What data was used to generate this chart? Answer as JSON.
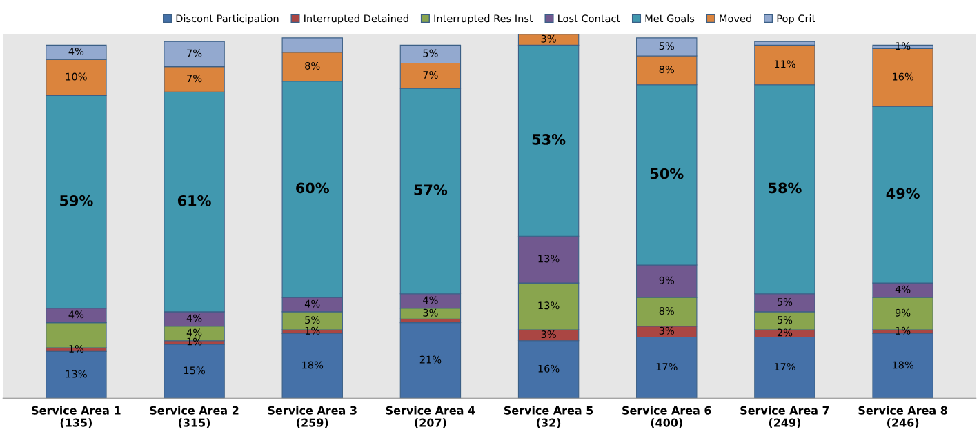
{
  "chart_data": {
    "type": "bar",
    "stacked": true,
    "data_labels": true,
    "legend": "top",
    "grid": false,
    "categories": [
      "Service Area 1\n(135)",
      "Service Area 2\n(315)",
      "Service Area 3\n(259)",
      "Service Area 4\n(207)",
      "Service Area 5\n(32)",
      "Service Area 6\n(400)",
      "Service Area 7\n(249)",
      "Service Area 8\n(246)"
    ],
    "series": [
      {
        "name": "Discont Participation",
        "color": "#4571a8",
        "values": [
          13,
          15,
          18,
          21,
          16,
          17,
          17,
          18
        ],
        "value_labels": [
          "13%",
          "15%",
          "18%",
          "21%",
          "16%",
          "17%",
          "17%",
          "18%"
        ]
      },
      {
        "name": "Interrupted Detained",
        "color": "#aa4643",
        "values": [
          1,
          1,
          1,
          1,
          3,
          3,
          2,
          1
        ],
        "value_labels": [
          "1%",
          "1%",
          "1%",
          null,
          "3%",
          "3%",
          "2%",
          "1%"
        ]
      },
      {
        "name": "Interrupted Res Inst",
        "color": "#89a54e",
        "values": [
          7,
          4,
          5,
          3,
          13,
          8,
          5,
          9
        ],
        "value_labels": [
          null,
          "4%",
          "5%",
          "3%",
          "13%",
          "8%",
          "5%",
          "9%"
        ]
      },
      {
        "name": "Lost Contact",
        "color": "#71588f",
        "values": [
          4,
          4,
          4,
          4,
          13,
          9,
          5,
          4
        ],
        "value_labels": [
          "4%",
          "4%",
          "4%",
          "4%",
          "13%",
          "9%",
          "5%",
          "4%"
        ]
      },
      {
        "name": "Met Goals",
        "color": "#4198af",
        "values": [
          59,
          61,
          60,
          57,
          53,
          50,
          58,
          49
        ],
        "value_labels": [
          "59%",
          "61%",
          "60%",
          "57%",
          "53%",
          "50%",
          "58%",
          "49%"
        ]
      },
      {
        "name": "Moved",
        "color": "#db843d",
        "values": [
          10,
          7,
          8,
          7,
          3,
          8,
          11,
          16
        ],
        "value_labels": [
          "10%",
          "7%",
          "8%",
          "7%",
          "3%",
          "8%",
          "11%",
          "16%"
        ]
      },
      {
        "name": "Pop Crit",
        "color": "#93a9cf",
        "values": [
          4,
          7,
          4,
          5,
          null,
          5,
          1,
          1
        ],
        "value_labels": [
          "4%",
          "7%",
          null,
          "5%",
          null,
          "5%",
          null,
          "1%"
        ]
      }
    ]
  }
}
